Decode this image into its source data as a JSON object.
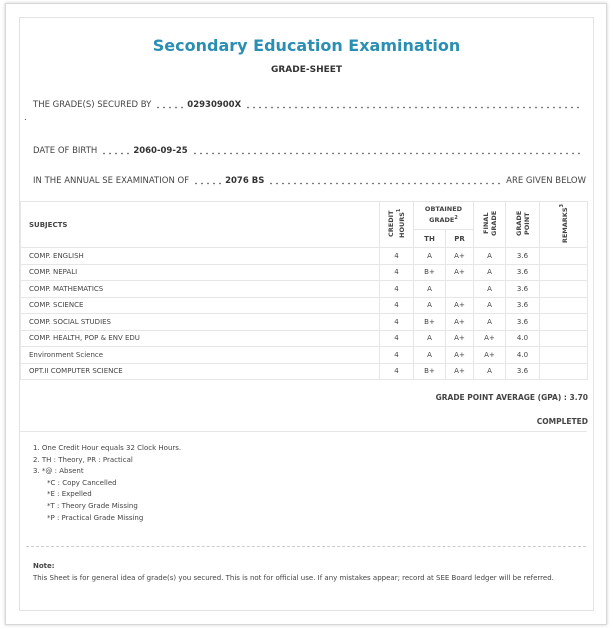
{
  "header": {
    "title": "Secondary Education Examination",
    "subtitle": "GRADE-SHEET"
  },
  "info": [
    {
      "label": "THE GRADE(S) SECURED BY",
      "value": "02930900X"
    },
    {
      "label": "DATE OF BIRTH",
      "value": "2060-09-25"
    },
    {
      "label": "IN THE ANNUAL SE EXAMINATION OF",
      "value": "2076 BS",
      "suffix": "ARE GIVEN BELOW"
    }
  ],
  "table": {
    "headers": {
      "subjects": "SUBJECTS",
      "credit": {
        "text": "CREDIT HOURS",
        "note": "1"
      },
      "obtained": {
        "text": "OBTAINED GRADE",
        "note": "2"
      },
      "th": "TH",
      "pr": "PR",
      "final": "FINAL GRADE",
      "point": "GRADE POINT",
      "remarks": {
        "text": "REMARKS",
        "note": "3"
      }
    },
    "rows": [
      [
        "COMP. ENGLISH",
        "4",
        "A",
        "A+",
        "A",
        "3.6"
      ],
      [
        "COMP. NEPALI",
        "4",
        "B+",
        "A+",
        "A",
        "3.6"
      ],
      [
        "COMP. MATHEMATICS",
        "4",
        "A",
        null,
        "A",
        "3.6"
      ],
      [
        "COMP. SCIENCE",
        "4",
        "A",
        "A+",
        "A",
        "3.6"
      ],
      [
        "COMP. SOCIAL STUDIES",
        "4",
        "B+",
        "A+",
        "A",
        "3.6"
      ],
      [
        "COMP. HEALTH, POP & ENV EDU",
        "4",
        "A",
        "A+",
        "A+",
        "4.0"
      ],
      [
        "Environment Science",
        "4",
        "A",
        "A+",
        "A+",
        "4.0"
      ],
      [
        "OPT.II COMPUTER SCIENCE",
        "4",
        "B+",
        "A+",
        "A",
        "3.6"
      ]
    ]
  },
  "gpa": "GRADE POINT AVERAGE (GPA) : 3.70",
  "status": "COMPLETED",
  "footnotes": [
    "1. One Credit Hour equals 32 Clock Hours.",
    "2. TH : Theory, PR : Practical",
    "3. *@ : Absent",
    "*C : Copy Cancelled",
    "*E : Expelled",
    "*T : Theory Grade Missing",
    "*P : Practical Grade Missing"
  ],
  "note": {
    "title": "Note:",
    "text": "This Sheet is for general idea of grade(s) you secured. This is not for official use. If any mistakes appear; record at SEE Board ledger will be referred."
  }
}
